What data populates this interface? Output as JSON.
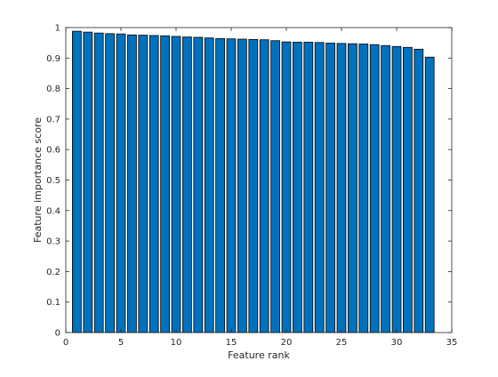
{
  "chart_data": {
    "type": "bar",
    "title": "",
    "xlabel": "Feature rank",
    "ylabel": "Feature importance score",
    "xlim": [
      0,
      35
    ],
    "ylim": [
      0,
      1
    ],
    "xticks": [
      0,
      5,
      10,
      15,
      20,
      25,
      30,
      35
    ],
    "xtick_labels": [
      "0",
      "5",
      "10",
      "15",
      "20",
      "25",
      "30",
      "35"
    ],
    "yticks": [
      0,
      0.1,
      0.2,
      0.3,
      0.4,
      0.5,
      0.6,
      0.7,
      0.8,
      0.9,
      1
    ],
    "ytick_labels": [
      "0",
      "0.1",
      "0.2",
      "0.3",
      "0.4",
      "0.5",
      "0.6",
      "0.7",
      "0.8",
      "0.9",
      "1"
    ],
    "grid": false,
    "bar_color": "#0072BD",
    "edge_color": "#000000",
    "x": [
      1,
      2,
      3,
      4,
      5,
      6,
      7,
      8,
      9,
      10,
      11,
      12,
      13,
      14,
      15,
      16,
      17,
      18,
      19,
      20,
      21,
      22,
      23,
      24,
      25,
      26,
      27,
      28,
      29,
      30,
      31,
      32,
      33
    ],
    "values": [
      0.988,
      0.985,
      0.982,
      0.98,
      0.979,
      0.976,
      0.975,
      0.974,
      0.973,
      0.971,
      0.969,
      0.968,
      0.966,
      0.964,
      0.963,
      0.962,
      0.961,
      0.96,
      0.957,
      0.953,
      0.952,
      0.952,
      0.951,
      0.949,
      0.948,
      0.947,
      0.946,
      0.944,
      0.941,
      0.938,
      0.935,
      0.929,
      0.903
    ]
  }
}
